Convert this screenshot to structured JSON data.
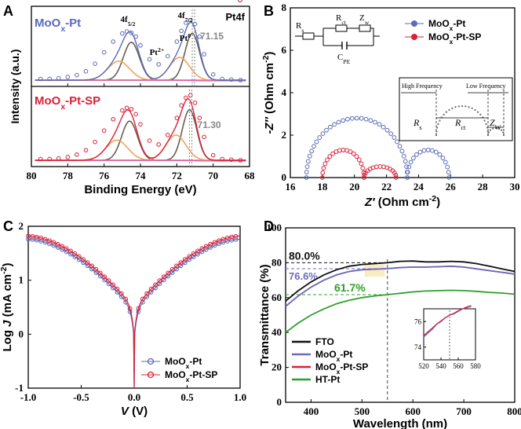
{
  "figure": {
    "panels": [
      "A",
      "B",
      "C",
      "D"
    ]
  },
  "chart_data": [
    {
      "id": "A",
      "type": "line",
      "title": "Pt4f",
      "xlabel": "Binding Energy (eV)",
      "ylabel": "Intensity (a.u.)",
      "xlim": [
        80,
        68
      ],
      "x_reversed": true,
      "xticks": [
        80,
        78,
        76,
        74,
        72,
        70,
        68
      ],
      "colors": {
        "top_data": "#5a6ab8",
        "bottom_data": "#d8213a",
        "pt0": "#555555",
        "pt2": "#7a6a58",
        "orange": "#f2a25c",
        "pink": "#e060b0",
        "ref": "#888888"
      },
      "subpanels": [
        {
          "name": "MoOx-Pt",
          "label_main": "MoO",
          "label_sub": "x",
          "label_tail": "-Pt",
          "peak_labels": [
            {
              "main": "4f",
              "sub": "5/2"
            },
            {
              "main": "4f",
              "sub": "7/2"
            },
            {
              "main": "Pt",
              "sup": "0"
            },
            {
              "main": "Pt",
              "sup": "2+"
            }
          ],
          "ref_label": "71.15",
          "ref_x": 71.15,
          "background": 0.05,
          "fitted_components": [
            {
              "name": "Pt0 4f7/2",
              "center": 71.15,
              "amplitude": 0.74,
              "width": 0.4
            },
            {
              "name": "Pt0 4f5/2",
              "center": 74.5,
              "amplitude": 0.6,
              "width": 0.44
            },
            {
              "name": "Pt2+ 4f7/2",
              "center": 71.85,
              "amplitude": 0.36,
              "width": 0.55
            },
            {
              "name": "Pt2+ 4f5/2",
              "center": 75.2,
              "amplitude": 0.3,
              "width": 0.6
            }
          ],
          "experimental": {
            "x": [
              79.5,
              79.0,
              78.5,
              78.0,
              77.5,
              77.0,
              76.5,
              76.0,
              75.5,
              75.0,
              74.75,
              74.5,
              74.25,
              74.0,
              73.5,
              73.0,
              72.5,
              72.0,
              71.75,
              71.5,
              71.25,
              71.0,
              70.75,
              70.5,
              70.0,
              69.5,
              69.0,
              68.5
            ],
            "y": [
              0.07,
              0.07,
              0.08,
              0.1,
              0.13,
              0.19,
              0.31,
              0.49,
              0.66,
              0.79,
              0.82,
              0.8,
              0.74,
              0.6,
              0.38,
              0.3,
              0.43,
              0.66,
              0.83,
              0.96,
              1.0,
              0.94,
              0.74,
              0.46,
              0.14,
              0.07,
              0.06,
              0.05
            ]
          }
        },
        {
          "name": "MoOx-Pt-SP",
          "label_main": "MoO",
          "label_sub": "x",
          "label_tail": "-Pt-SP",
          "ref_label": "71.30",
          "ref_x": 71.3,
          "background": 0.05,
          "fitted_components": [
            {
              "name": "Pt0 4f7/2",
              "center": 71.3,
              "amplitude": 0.8,
              "width": 0.4
            },
            {
              "name": "Pt0 4f5/2",
              "center": 74.6,
              "amplitude": 0.62,
              "width": 0.44
            },
            {
              "name": "Pt2+ 4f7/2",
              "center": 72.05,
              "amplitude": 0.4,
              "width": 0.55
            },
            {
              "name": "Pt2+ 4f5/2",
              "center": 75.3,
              "amplitude": 0.32,
              "width": 0.6
            }
          ],
          "experimental": {
            "x": [
              79.5,
              79.0,
              78.5,
              78.0,
              77.5,
              77.0,
              76.5,
              76.0,
              75.5,
              75.0,
              74.75,
              74.5,
              74.25,
              74.0,
              73.5,
              73.0,
              72.5,
              72.0,
              71.75,
              71.5,
              71.25,
              71.0,
              70.75,
              70.5,
              70.0,
              69.5,
              69.0,
              68.5
            ],
            "y": [
              0.07,
              0.07,
              0.08,
              0.1,
              0.14,
              0.21,
              0.34,
              0.52,
              0.7,
              0.84,
              0.88,
              0.86,
              0.78,
              0.62,
              0.36,
              0.3,
              0.45,
              0.72,
              0.92,
              1.04,
              1.08,
              0.96,
              0.72,
              0.42,
              0.13,
              0.07,
              0.06,
              0.05
            ]
          }
        }
      ]
    },
    {
      "id": "B",
      "type": "scatter",
      "xlabel_main": "Z′",
      "xlabel_tail": " (Ohm cm",
      "xlabel_sup": "-2",
      "xlabel_end": ")",
      "ylabel_main": "-Z″",
      "ylabel_tail": " (Ohm cm",
      "ylabel_sup": "-2",
      "ylabel_end": ")",
      "xlim": [
        16,
        30
      ],
      "ylim": [
        0,
        8
      ],
      "xticks": [
        16,
        18,
        20,
        22,
        24,
        26,
        28,
        30
      ],
      "yticks": [
        0,
        2,
        4,
        6,
        8
      ],
      "colors": {
        "s1": "#5a6ab8",
        "s2": "#d8213a"
      },
      "series": [
        {
          "name": "MoOx-Pt",
          "legend_main": "MoO",
          "legend_sub": "x",
          "legend_tail": "-Pt",
          "arcs": [
            {
              "x_start": 17.0,
              "x_end": 23.3,
              "peak": 2.8
            },
            {
              "x_start": 23.3,
              "x_end": 25.9,
              "peak": 1.3
            }
          ]
        },
        {
          "name": "MoOx-Pt-SP",
          "legend_main": "MoO",
          "legend_sub": "x",
          "legend_tail": "-Pt-SP",
          "arcs": [
            {
              "x_start": 18.0,
              "x_end": 20.6,
              "peak": 1.3
            },
            {
              "x_start": 20.6,
              "x_end": 22.6,
              "peak": 0.52
            }
          ]
        }
      ],
      "circuit": {
        "rs": "Rs",
        "rct": "Rct",
        "zw": "Zw",
        "cpe": "CPE"
      },
      "inset": {
        "high_freq": "High Frequency",
        "low_freq": "Low Frequency",
        "rs_main": "R",
        "rs_sub": "s",
        "rct_main": "R",
        "rct_sub": "ct",
        "zw_main": "Z",
        "zw_sub": "W"
      }
    },
    {
      "id": "C",
      "type": "line",
      "xlabel_main": "V",
      "xlabel_tail": " (V)",
      "ylabel_main": "Log ",
      "ylabel_j": "J",
      "ylabel_tail": " (mA cm",
      "ylabel_sup": "-2",
      "ylabel_end": ")",
      "xlim": [
        -1.0,
        1.0
      ],
      "ylim": [
        -1,
        2
      ],
      "xticks": [
        -1.0,
        -0.5,
        0.0,
        0.5,
        1.0
      ],
      "xtick_labels": [
        "-1.0",
        "-0.5",
        "0.0",
        "0.5",
        "1.0"
      ],
      "yticks": [
        -1,
        0,
        1,
        2
      ],
      "colors": {
        "s1": "#5a6ab8",
        "s2": "#d8213a"
      },
      "series": [
        {
          "name": "MoOx-Pt",
          "legend_main": "MoO",
          "legend_sub": "x",
          "legend_tail": "-Pt",
          "log_j_at_1V": 1.76,
          "min_log_j": -1.0
        },
        {
          "name": "MoOx-Pt-SP",
          "legend_main": "MoO",
          "legend_sub": "x",
          "legend_tail": "-Pt-SP",
          "log_j_at_1V": 1.82,
          "min_log_j": -1.0
        }
      ]
    },
    {
      "id": "D",
      "type": "line",
      "xlabel": "Wavelength (nm)",
      "ylabel": "Transmittance (%)",
      "xlim": [
        350,
        800
      ],
      "ylim": [
        0,
        100
      ],
      "xticks": [
        400,
        500,
        600,
        700,
        800
      ],
      "yticks": [
        0,
        20,
        40,
        60,
        80,
        100
      ],
      "colors": {
        "FTO": "#111111",
        "MoOx-Pt": "#6a6ac0",
        "MoOx-Pt-SP": "#d8213a",
        "HT-Pt": "#2ca02c",
        "highlight": "#f5e6a8"
      },
      "annotations": [
        {
          "text": "80.0%",
          "value": 80.0,
          "color": "#111111"
        },
        {
          "text": "76.6%",
          "value": 76.6,
          "color": "#6a6ac0"
        },
        {
          "text": "61.7%",
          "value": 61.7,
          "color": "#2ca02c"
        }
      ],
      "reference_wavelength": 550,
      "series": [
        {
          "name": "FTO",
          "legend": "FTO",
          "x": [
            350,
            375,
            400,
            425,
            450,
            475,
            500,
            525,
            550,
            575,
            600,
            625,
            650,
            675,
            700,
            725,
            750,
            775,
            800
          ],
          "y": [
            58,
            64,
            69,
            73,
            76,
            78,
            79,
            79.5,
            80,
            80.8,
            81,
            80.5,
            80.5,
            80.8,
            80.5,
            79.5,
            78,
            76.5,
            75
          ]
        },
        {
          "name": "MoOx-Pt",
          "legend_main": "MoO",
          "legend_sub": "x",
          "legend_tail": "-Pt",
          "x": [
            350,
            375,
            400,
            425,
            450,
            475,
            500,
            525,
            550,
            575,
            600,
            625,
            650,
            675,
            700,
            725,
            750,
            775,
            800
          ],
          "y": [
            55,
            61,
            66,
            70,
            73,
            75,
            76,
            76.3,
            76.6,
            77.2,
            77.5,
            77.5,
            77.7,
            78,
            77.5,
            76.5,
            75.5,
            74.5,
            73.5
          ]
        },
        {
          "name": "MoOx-Pt-SP",
          "legend_main": "MoO",
          "legend_sub": "x",
          "legend_tail": "-Pt-SP",
          "x": [
            350,
            375,
            400,
            425,
            450,
            475,
            500,
            525,
            550,
            575,
            600,
            625,
            650,
            675,
            700,
            725,
            750,
            775,
            800
          ],
          "y": [
            55,
            61,
            66,
            70,
            73,
            75,
            76,
            76.3,
            76.6,
            77.2,
            77.5,
            77.5,
            77.7,
            78,
            77.5,
            76.5,
            75.5,
            74.5,
            73.5
          ]
        },
        {
          "name": "HT-Pt",
          "legend": "HT-Pt",
          "x": [
            350,
            375,
            400,
            425,
            450,
            475,
            500,
            525,
            550,
            575,
            600,
            625,
            650,
            675,
            700,
            725,
            750,
            775,
            800
          ],
          "y": [
            40,
            45.5,
            50,
            53.5,
            56.5,
            58.5,
            60,
            61,
            61.7,
            62.5,
            63.3,
            63.8,
            64,
            64.2,
            64,
            63.6,
            63,
            62.6,
            62
          ]
        }
      ],
      "inset": {
        "xlim": [
          520,
          580
        ],
        "ylim": [
          73,
          77
        ],
        "xticks": [
          520,
          540,
          560,
          580
        ],
        "yticks": [
          74,
          76
        ],
        "reference_x": 550,
        "x": [
          520,
          525,
          530,
          535,
          540,
          545,
          550,
          555,
          560,
          565,
          570,
          575
        ],
        "y_series1": [
          74.8,
          75.1,
          75.4,
          75.8,
          76.0,
          76.3,
          76.5,
          76.6,
          76.8,
          77.0,
          77.1,
          77.2
        ],
        "y_series2": [
          74.9,
          75.2,
          75.5,
          75.8,
          76.05,
          76.3,
          76.5,
          76.65,
          76.85,
          77.0,
          77.15,
          77.25
        ]
      }
    }
  ]
}
